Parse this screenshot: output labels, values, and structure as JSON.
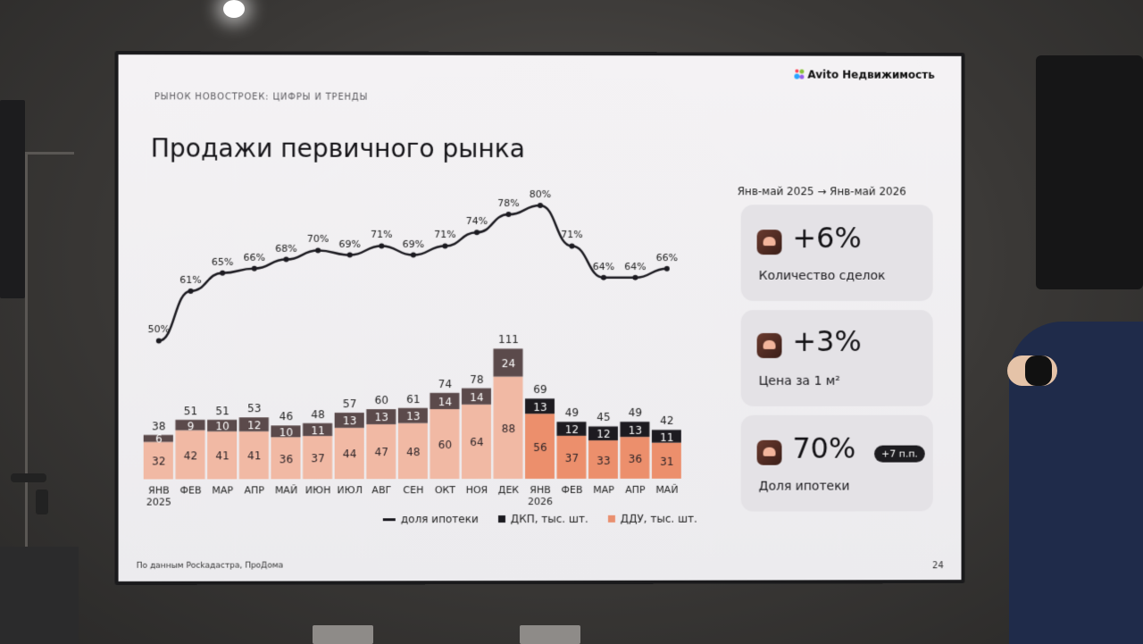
{
  "header": {
    "kicker": "РЫНОК НОВОСТРОЕК: ЦИФРЫ И ТРЕНДЫ",
    "brand": "Avito Недвижимость",
    "title": "Продажи первичного рынка"
  },
  "footer": {
    "source": "По данным Росkадастра, ПроДома",
    "page": "24"
  },
  "summary": {
    "period": "Янв-май 2025 → Янв-май 2026",
    "cards": [
      {
        "value": "+6%",
        "label": "Количество сделок",
        "icon": "handshake-icon"
      },
      {
        "value": "+3%",
        "label": "Цена за 1 м²",
        "icon": "price-tag-icon"
      },
      {
        "value": "70%",
        "label": "Доля ипотеки",
        "badge": "+7 п.п.",
        "icon": "bank-icon"
      }
    ]
  },
  "chart_data": {
    "type": "bar",
    "stacked": true,
    "categories": [
      "ЯНВ 2025",
      "ФЕВ",
      "МАР",
      "АПР",
      "МАЙ",
      "ИЮН",
      "ИЮЛ",
      "АВГ",
      "СЕН",
      "ОКТ",
      "НОЯ",
      "ДЕК",
      "ЯНВ 2026",
      "ФЕВ",
      "МАР",
      "АПР",
      "МАЙ"
    ],
    "series": [
      {
        "name": "ДДУ, тыс. шт.",
        "values": [
          32,
          42,
          41,
          41,
          36,
          37,
          44,
          47,
          48,
          60,
          64,
          88,
          56,
          37,
          33,
          36,
          31
        ],
        "color": "#f0ad93"
      },
      {
        "name": "ДКП, тыс. шт.",
        "values": [
          6,
          9,
          10,
          12,
          10,
          11,
          13,
          13,
          13,
          14,
          14,
          24,
          13,
          12,
          12,
          13,
          11
        ],
        "color": "#5a4a4a"
      }
    ],
    "totals": [
      38,
      51,
      51,
      53,
      46,
      48,
      57,
      60,
      61,
      74,
      78,
      111,
      69,
      49,
      45,
      49,
      42
    ],
    "line": {
      "name": "доля ипотеки",
      "values": [
        50,
        61,
        65,
        66,
        68,
        70,
        69,
        71,
        69,
        71,
        74,
        78,
        80,
        71,
        64,
        64,
        66
      ],
      "labels": [
        "50%",
        "61%",
        "65%",
        "66%",
        "68%",
        "70%",
        "69%",
        "71%",
        "69%",
        "71%",
        "74%",
        "78%",
        "80%",
        "71%",
        "64%",
        "64%",
        "66%"
      ]
    },
    "highlight_2026_from_index": 12,
    "colors": {
      "ddu_2025": "#f1b9a4",
      "ddu_2026": "#ec8f6c",
      "dkp_2025": "#5b4a4b",
      "dkp_2026": "#1d1b20",
      "line": "#1b1a20"
    }
  }
}
